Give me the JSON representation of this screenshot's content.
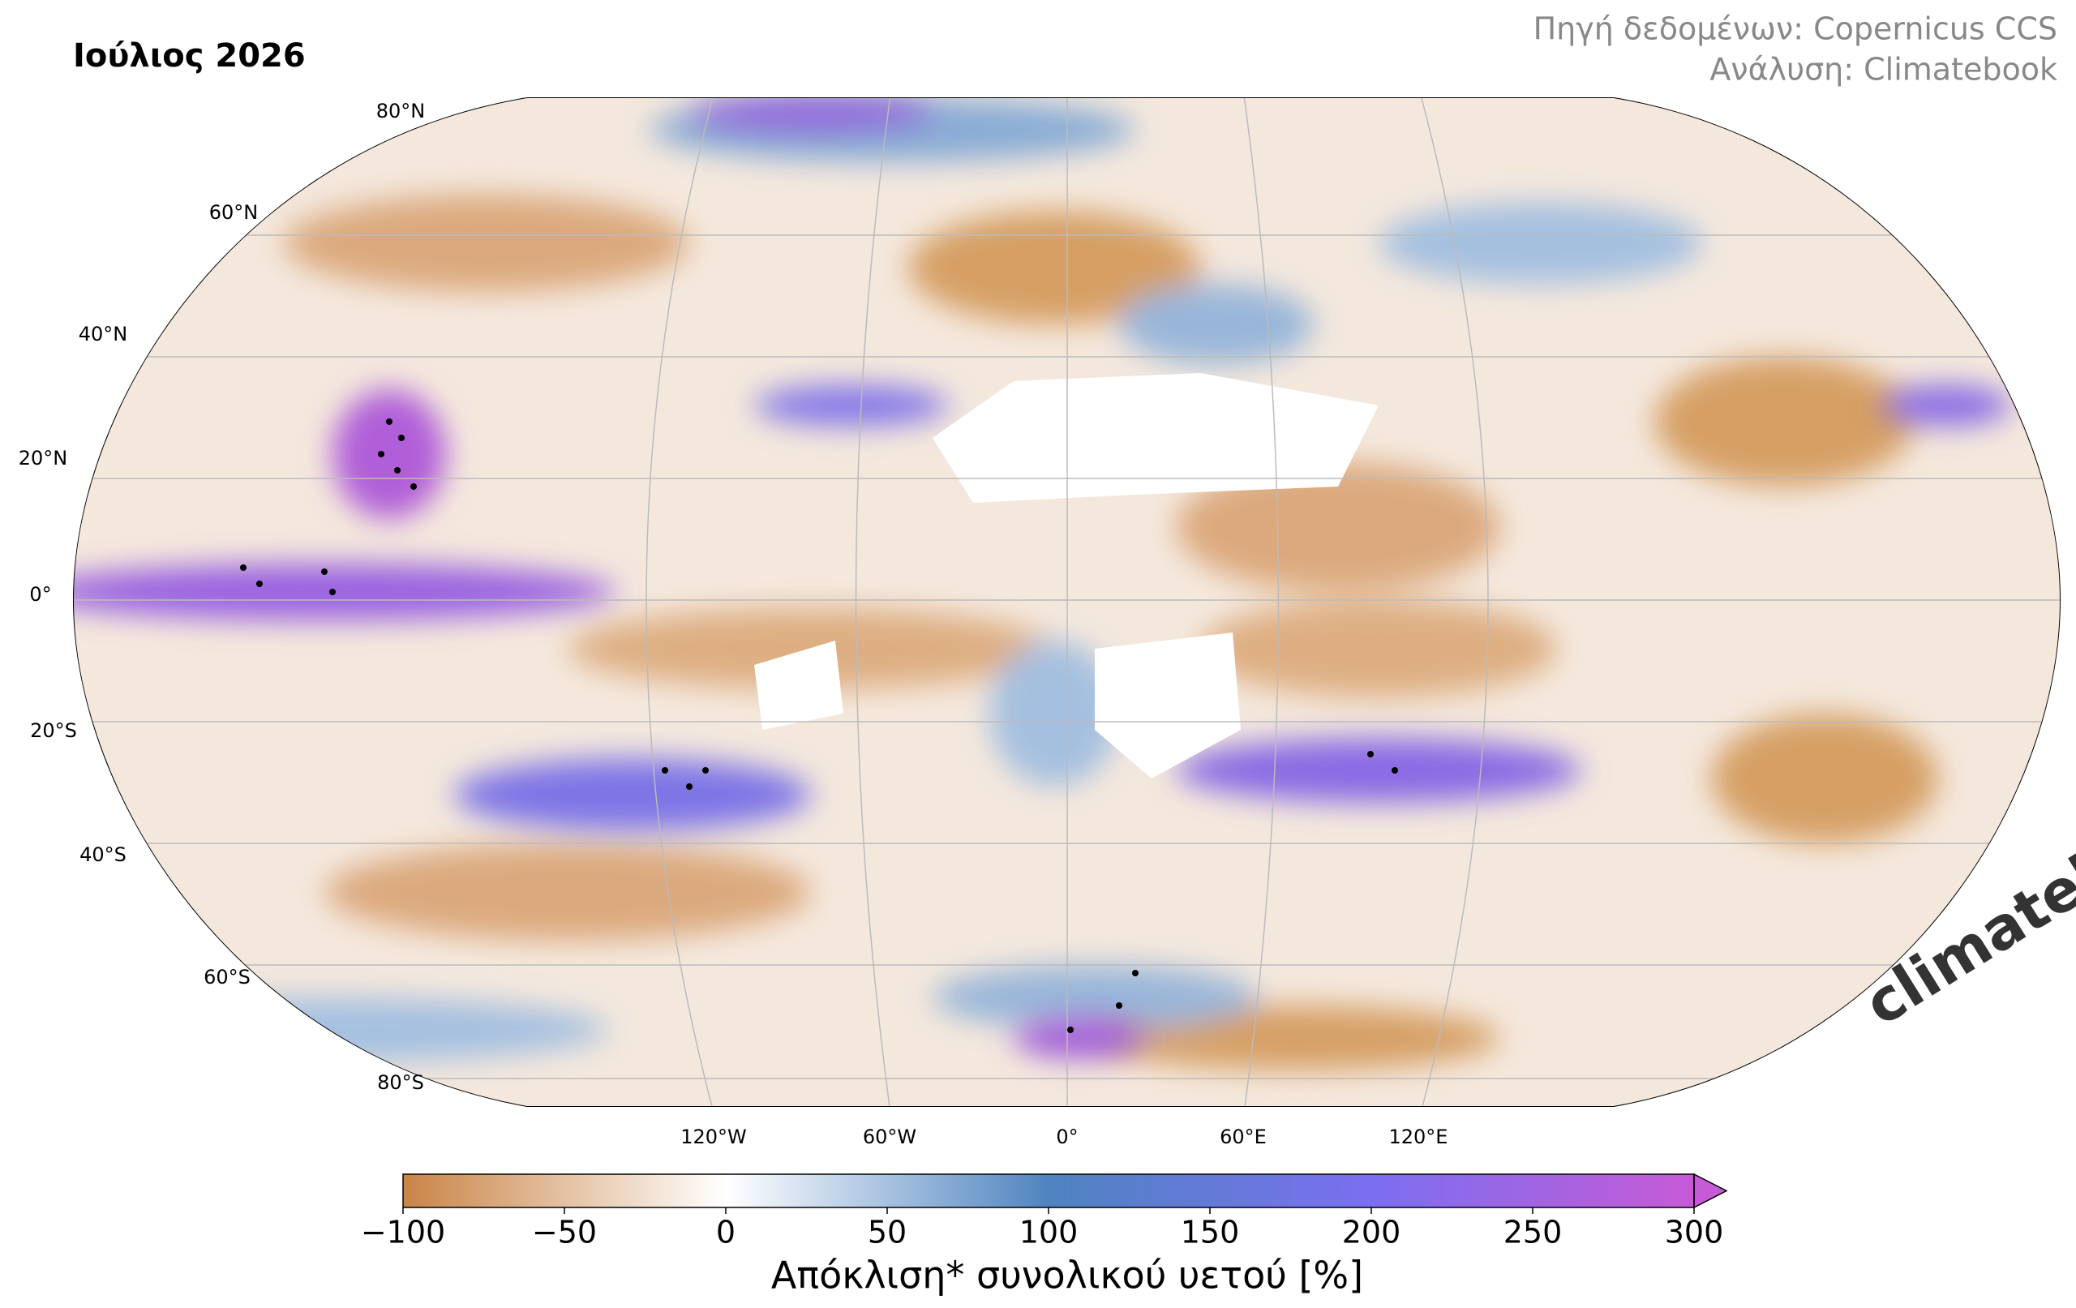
{
  "header": {
    "title": "Ιούλιος 2026",
    "source": [
      "Πηγή δεδομένων: Copernicus CCS",
      "Ανάλυση: Climatebook"
    ]
  },
  "map": {
    "lat_labels": [
      "80°N",
      "60°N",
      "40°N",
      "20°N",
      "0°",
      "20°S",
      "40°S",
      "60°S",
      "80°S"
    ],
    "lon_labels": [
      "120°W",
      "60°W",
      "0°",
      "60°E",
      "120°E"
    ]
  },
  "colorbar": {
    "lim": [
      -100,
      300
    ],
    "ticks": [
      {
        "value": -100,
        "label": "−100"
      },
      {
        "value": -50,
        "label": "−50"
      },
      0,
      50,
      100,
      150,
      200,
      250,
      300
    ],
    "colors": [
      "#c98447",
      "#ffffff",
      "#4f84c0",
      "#7a6ff0",
      "#c75ad6"
    ],
    "label": "Απόκλιση* συνολικού υετού [%]"
  },
  "logo": "climatebook"
}
